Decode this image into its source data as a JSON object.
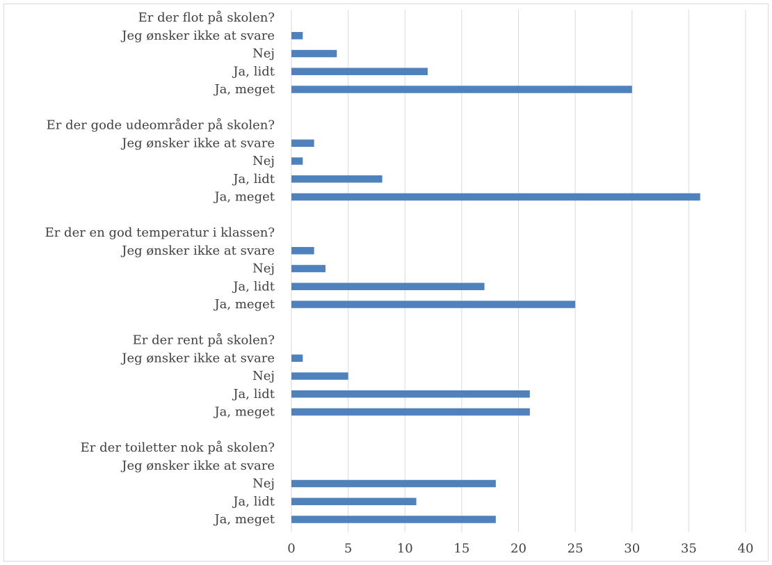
{
  "chart_data": {
    "type": "bar",
    "orientation": "horizontal",
    "xlim": [
      0,
      40
    ],
    "x_ticks": [
      0,
      5,
      10,
      15,
      20,
      25,
      30,
      35,
      40
    ],
    "grid": "vertical",
    "bar_color": "#4f81bd",
    "grid_color": "#d9d9d9",
    "groups": [
      {
        "question": "Er der flot på skolen?",
        "categories": [
          "Jeg ønsker ikke at svare",
          "Nej",
          "Ja, lidt",
          "Ja, meget"
        ],
        "values": [
          1,
          4,
          12,
          30
        ]
      },
      {
        "question": "Er der gode udeområder på skolen?",
        "categories": [
          "Jeg ønsker ikke at svare",
          "Nej",
          "Ja, lidt",
          "Ja, meget"
        ],
        "values": [
          2,
          1,
          8,
          36
        ]
      },
      {
        "question": "Er der en god temperatur i klassen?",
        "categories": [
          "Jeg ønsker ikke at svare",
          "Nej",
          "Ja, lidt",
          "Ja, meget"
        ],
        "values": [
          2,
          3,
          17,
          25
        ]
      },
      {
        "question": "Er der rent på skolen?",
        "categories": [
          "Jeg ønsker ikke at svare",
          "Nej",
          "Ja, lidt",
          "Ja, meget"
        ],
        "values": [
          1,
          5,
          21,
          21
        ]
      },
      {
        "question": "Er der toiletter nok på skolen?",
        "categories": [
          "Jeg ønsker ikke at svare",
          "Nej",
          "Ja, lidt",
          "Ja, meget"
        ],
        "values": [
          0,
          18,
          11,
          18
        ]
      }
    ]
  }
}
